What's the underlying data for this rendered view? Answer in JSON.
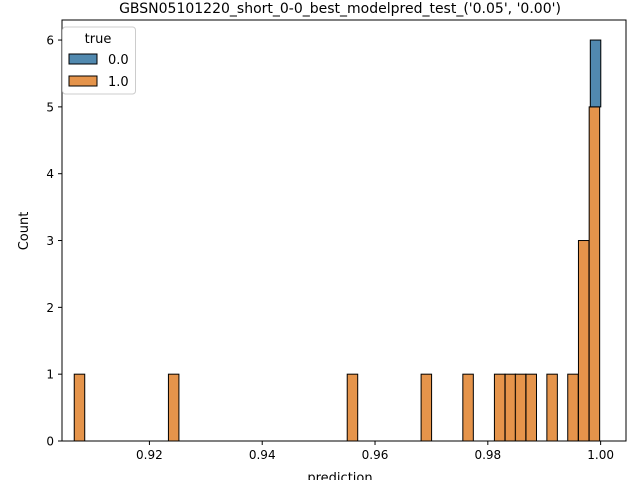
{
  "chart_data": {
    "type": "bar",
    "title": "GBSN05101220_short_0-0_best_modelpred_test_('0.05', '0.00')",
    "xlabel": "prediction",
    "ylabel": "Count",
    "xlim": [
      0.9045,
      1.0045
    ],
    "ylim": [
      0,
      6.3
    ],
    "x_ticks": [
      0.92,
      0.94,
      0.96,
      0.98,
      1.0
    ],
    "x_tick_labels": [
      "0.92",
      "0.94",
      "0.96",
      "0.98",
      "1.00"
    ],
    "y_ticks": [
      0,
      1,
      2,
      3,
      4,
      5,
      6
    ],
    "y_tick_labels": [
      "0",
      "1",
      "2",
      "3",
      "4",
      "5",
      "6"
    ],
    "bin_width": 0.00186,
    "legend": {
      "title": "true",
      "position": "top-left",
      "entries": [
        {
          "label": "0.0",
          "color": "#3274a1"
        },
        {
          "label": "1.0",
          "color": "#e1812c"
        }
      ]
    },
    "series": [
      {
        "name": "0.0",
        "color": "#3274a1",
        "stacked_on": "1.0",
        "bins": [
          {
            "x": 0.9991,
            "count": 1
          }
        ]
      },
      {
        "name": "1.0",
        "color": "#e1812c",
        "bins": [
          {
            "x": 0.9076,
            "count": 1
          },
          {
            "x": 0.9243,
            "count": 1
          },
          {
            "x": 0.956,
            "count": 1
          },
          {
            "x": 0.9691,
            "count": 1
          },
          {
            "x": 0.9765,
            "count": 1
          },
          {
            "x": 0.9821,
            "count": 1
          },
          {
            "x": 0.984,
            "count": 1
          },
          {
            "x": 0.9858,
            "count": 1
          },
          {
            "x": 0.9877,
            "count": 1
          },
          {
            "x": 0.9914,
            "count": 1
          },
          {
            "x": 0.9951,
            "count": 1
          },
          {
            "x": 0.997,
            "count": 3
          },
          {
            "x": 0.9989,
            "count": 5
          }
        ]
      }
    ],
    "fill_opacity": 0.85,
    "edge_color": "#000000"
  }
}
